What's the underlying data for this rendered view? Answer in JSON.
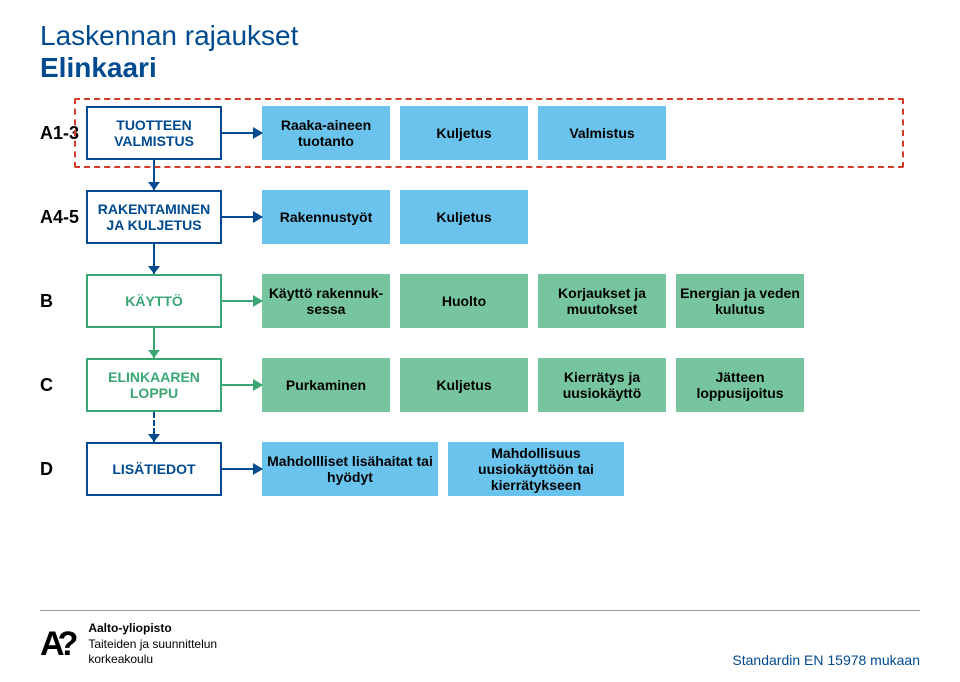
{
  "title": {
    "line1": "Laskennan rajaukset",
    "line2": "Elinkaari",
    "color": "#004a8f"
  },
  "colors": {
    "blue_border": "#004a8f",
    "blue_fill": "#69c3ed",
    "green_fill": "#76c59e",
    "red": "#d23a2a",
    "arrow_blue": "#004a8f",
    "arrow_green": "#3aa674",
    "text_dark": "#000000"
  },
  "rows": [
    {
      "code": "A1-3",
      "head": "TUOTTEEN VALMISTUS",
      "head_color": "#004a8f",
      "arrow_color": "#004a8f",
      "boxes": [
        {
          "label": "Raaka-aineen tuotanto",
          "fill": "#69c3ed"
        },
        {
          "label": "Kuljetus",
          "fill": "#69c3ed"
        },
        {
          "label": "Valmistus",
          "fill": "#69c3ed"
        }
      ],
      "dashed": true,
      "vconn": {
        "to_next": true,
        "color": "#004a8f",
        "style": "solid"
      }
    },
    {
      "code": "A4-5",
      "head": "RAKENTAMINEN JA KULJETUS",
      "head_color": "#004a8f",
      "arrow_color": "#004a8f",
      "boxes": [
        {
          "label": "Rakennustyöt",
          "fill": "#69c3ed"
        },
        {
          "label": "Kuljetus",
          "fill": "#69c3ed"
        }
      ],
      "vconn": {
        "to_next": true,
        "color": "#004a8f",
        "style": "solid"
      }
    },
    {
      "code": "B",
      "head": "KÄYTTÖ",
      "head_color": "#3aa674",
      "arrow_color": "#3aa674",
      "boxes": [
        {
          "label": "Käyttö rakennuk-sessa",
          "fill": "#76c59e"
        },
        {
          "label": "Huolto",
          "fill": "#76c59e"
        },
        {
          "label": "Korjaukset ja muutokset",
          "fill": "#76c59e"
        },
        {
          "label": "Energian ja veden kulutus",
          "fill": "#76c59e"
        }
      ],
      "vconn": {
        "to_next": true,
        "color": "#3aa674",
        "style": "solid"
      }
    },
    {
      "code": "C",
      "head": "ELINKAAREN LOPPU",
      "head_color": "#3aa674",
      "arrow_color": "#3aa674",
      "boxes": [
        {
          "label": "Purkaminen",
          "fill": "#76c59e"
        },
        {
          "label": "Kuljetus",
          "fill": "#76c59e"
        },
        {
          "label": "Kierrätys ja uusiokäyttö",
          "fill": "#76c59e"
        },
        {
          "label": "Jätteen loppusijoitus",
          "fill": "#76c59e"
        }
      ],
      "vconn": {
        "to_next": true,
        "color": "#004a8f",
        "style": "dashed"
      }
    },
    {
      "code": "D",
      "head": "LISÄTIEDOT",
      "head_color": "#004a8f",
      "arrow_color": "#004a8f",
      "boxes": [
        {
          "label": "Mahdollliset lisähaitat tai hyödyt",
          "fill": "#69c3ed",
          "wide": true
        },
        {
          "label": "Mahdollisuus uusiokäyttöön tai kierrätykseen",
          "fill": "#69c3ed",
          "wide": true
        }
      ]
    }
  ],
  "footer": {
    "logo_name": "Aalto-yliopisto",
    "logo_sub1": "Taiteiden ja suunnittelun",
    "logo_sub2": "korkeakoulu",
    "logo_mark": "A?",
    "source": "Standardin EN 15978 mukaan",
    "source_color": "#004a8f"
  }
}
